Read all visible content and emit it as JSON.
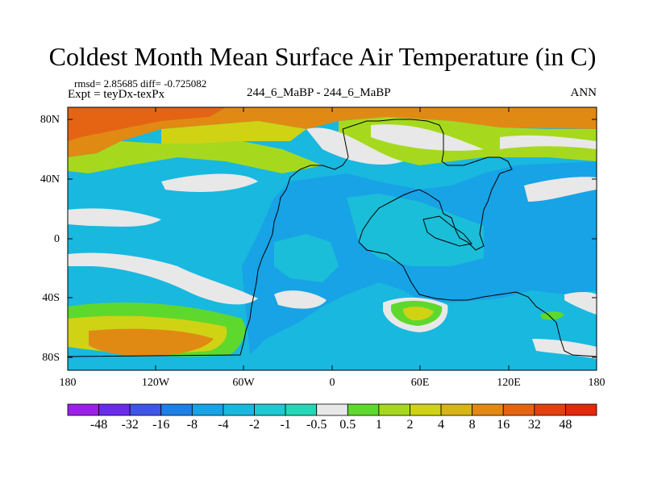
{
  "title": "Coldest Month Mean Surface Air Temperature (in C)",
  "stats_line": "rmsd= 2.85685 diff= -0.725082",
  "expt_line": "Expt = teyDx-texPx",
  "case_line": "244_6_MaBP - 244_6_MaBP",
  "period": "ANN",
  "lat_labels": [
    "80N",
    "40N",
    "0",
    "40S",
    "80S"
  ],
  "lon_labels": [
    "180",
    "120W",
    "60W",
    "0",
    "60E",
    "120E",
    "180"
  ],
  "colorbar": {
    "labels": [
      "-48",
      "-32",
      "-16",
      "-8",
      "-4",
      "-2",
      "-1",
      "-0.5",
      "0.5",
      "1",
      "2",
      "4",
      "8",
      "16",
      "32",
      "48"
    ],
    "colors": [
      "#9b1fe8",
      "#6b2bea",
      "#3f55e8",
      "#1e7fe6",
      "#17a3e6",
      "#19b8df",
      "#1ec9d2",
      "#24d8b7",
      "#e8e8e8",
      "#5ed82d",
      "#a6d91e",
      "#cfd314",
      "#d8b516",
      "#e08a14",
      "#e56413",
      "#e43f10",
      "#e4280c"
    ]
  },
  "map_colors": {
    "ocean_blue": "#19b8df",
    "deep_blue": "#17a3e6",
    "cyan": "#1ec9d2",
    "white": "#e8e8e8",
    "green": "#5ed82d",
    "yellow_green": "#a6d91e",
    "yellow": "#cfd314",
    "orange": "#e08a14",
    "red_orange": "#e56413"
  }
}
